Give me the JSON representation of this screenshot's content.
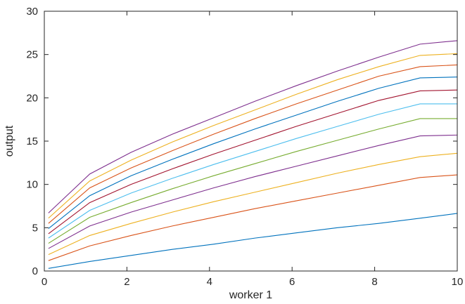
{
  "chart_data": {
    "type": "line",
    "title": "",
    "xlabel": "worker 1",
    "ylabel": "output",
    "xlim": [
      0,
      10
    ],
    "ylim": [
      0,
      30
    ],
    "xticks": [
      0,
      2,
      4,
      6,
      8,
      10
    ],
    "yticks": [
      0,
      5,
      10,
      15,
      20,
      25,
      30
    ],
    "grid": false,
    "legend": "none",
    "x": [
      0.1,
      1.1,
      2.1,
      3.1,
      4.1,
      5.1,
      6.1,
      7.1,
      8.1,
      9.1,
      10
    ],
    "series": [
      {
        "color": "#0072BD",
        "values": [
          0.3,
          1.1,
          1.8,
          2.5,
          3.1,
          3.8,
          4.4,
          5.0,
          5.5,
          6.1,
          6.65
        ]
      },
      {
        "color": "#D95319",
        "values": [
          1.2,
          2.9,
          4.1,
          5.2,
          6.2,
          7.2,
          8.1,
          9.0,
          9.9,
          10.8,
          11.1
        ]
      },
      {
        "color": "#EDB120",
        "values": [
          1.9,
          4.1,
          5.5,
          6.8,
          8.0,
          9.1,
          10.2,
          11.3,
          12.3,
          13.2,
          13.6
        ]
      },
      {
        "color": "#7E2F8E",
        "values": [
          2.6,
          5.2,
          6.8,
          8.2,
          9.6,
          10.9,
          12.1,
          13.3,
          14.5,
          15.6,
          15.7
        ]
      },
      {
        "color": "#77AC30",
        "values": [
          3.2,
          6.2,
          7.9,
          9.5,
          11.0,
          12.4,
          13.8,
          15.1,
          16.4,
          17.6,
          17.6
        ]
      },
      {
        "color": "#4DBEEE",
        "values": [
          3.8,
          7.0,
          9.0,
          10.7,
          12.3,
          13.8,
          15.3,
          16.7,
          18.1,
          19.3,
          19.3
        ]
      },
      {
        "color": "#A2142F",
        "values": [
          4.3,
          7.9,
          10.0,
          11.8,
          13.5,
          15.1,
          16.7,
          18.2,
          19.7,
          20.8,
          20.9
        ]
      },
      {
        "color": "#0072BD",
        "values": [
          4.9,
          8.7,
          11.0,
          12.9,
          14.7,
          16.4,
          18.0,
          19.6,
          21.1,
          22.3,
          22.4
        ]
      },
      {
        "color": "#D95319",
        "values": [
          5.5,
          9.6,
          11.9,
          13.9,
          15.8,
          17.6,
          19.3,
          20.9,
          22.5,
          23.6,
          23.8
        ]
      },
      {
        "color": "#EDB120",
        "values": [
          6.1,
          10.4,
          12.8,
          14.9,
          16.8,
          18.6,
          20.4,
          22.1,
          23.6,
          24.9,
          25.1
        ]
      },
      {
        "color": "#7E2F8E",
        "values": [
          6.7,
          11.2,
          13.7,
          15.8,
          17.7,
          19.6,
          21.4,
          23.1,
          24.7,
          26.2,
          26.6
        ]
      }
    ]
  }
}
